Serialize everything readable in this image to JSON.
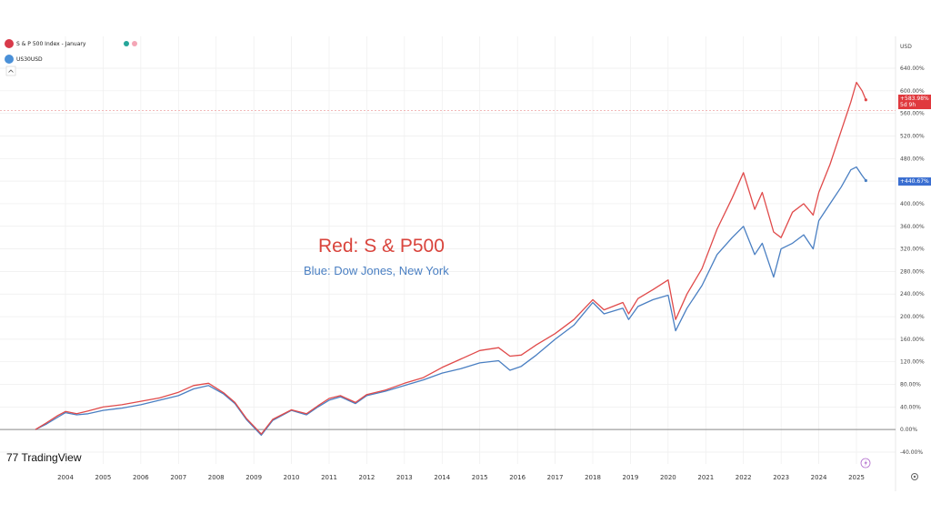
{
  "colors": {
    "sp500": "#e04a4a",
    "dow": "#4a7fc2",
    "grid": "#eeeeee",
    "zero_line": "#8a8a8a",
    "ref_line": "#f0b0b0"
  },
  "legend": {
    "sp500_label": "S & P 500 Index - January",
    "dow_label": "US30USD"
  },
  "axis": {
    "currency": "USD"
  },
  "annotations": {
    "red_text": "Red: S & P500",
    "blue_text": "Blue: Dow Jones, New York"
  },
  "branding": {
    "logo_text": "77 TradingView"
  },
  "tags": {
    "sp500_value": "+583.98%",
    "sp500_sub": "5d 9h",
    "dow_value": "+440.67%"
  },
  "chart_data": {
    "type": "line",
    "title": "",
    "xlabel": "",
    "ylabel": "",
    "y_unit": "%",
    "ylim": [
      -40,
      680
    ],
    "xlim": [
      2003.0,
      2025.6
    ],
    "grid": true,
    "y_ticks": [
      640,
      600,
      560,
      520,
      480,
      440,
      400,
      360,
      320,
      280,
      240,
      200,
      160,
      120,
      80,
      40,
      0,
      -40
    ],
    "y_tick_labels": [
      "640.00%",
      "600.00%",
      "560.00%",
      "520.00%",
      "480.00%",
      "440.00%",
      "400.00%",
      "360.00%",
      "320.00%",
      "280.00%",
      "240.00%",
      "200.00%",
      "160.00%",
      "120.00%",
      "80.00%",
      "40.00%",
      "0.00%",
      "-40.00%"
    ],
    "x_ticks": [
      "2004",
      "2005",
      "2006",
      "2007",
      "2008",
      "2009",
      "2010",
      "2011",
      "2012",
      "2013",
      "2014",
      "2015",
      "2016",
      "2017",
      "2018",
      "2019",
      "2020",
      "2021",
      "2022",
      "2023",
      "2024",
      "2025"
    ],
    "series": [
      {
        "name": "S & P 500 Index - January",
        "color": "#e04a4a",
        "last_value": 583.98,
        "x": [
          2003.2,
          2003.5,
          2003.8,
          2004.0,
          2004.3,
          2004.6,
          2005.0,
          2005.5,
          2006.0,
          2006.5,
          2007.0,
          2007.4,
          2007.8,
          2008.2,
          2008.5,
          2008.8,
          2009.2,
          2009.5,
          2010.0,
          2010.4,
          2010.7,
          2011.0,
          2011.3,
          2011.7,
          2012.0,
          2012.5,
          2013.0,
          2013.5,
          2014.0,
          2014.5,
          2015.0,
          2015.5,
          2015.8,
          2016.1,
          2016.5,
          2017.0,
          2017.5,
          2018.0,
          2018.3,
          2018.8,
          2018.95,
          2019.2,
          2019.6,
          2020.0,
          2020.2,
          2020.5,
          2020.9,
          2021.3,
          2021.7,
          2022.0,
          2022.3,
          2022.5,
          2022.8,
          2023.0,
          2023.3,
          2023.6,
          2023.85,
          2024.0,
          2024.3,
          2024.6,
          2024.85,
          2025.0,
          2025.15,
          2025.25
        ],
        "values": [
          0,
          12,
          25,
          32,
          28,
          33,
          40,
          44,
          50,
          56,
          66,
          78,
          82,
          65,
          48,
          20,
          -8,
          18,
          35,
          28,
          42,
          55,
          60,
          48,
          62,
          70,
          82,
          92,
          110,
          125,
          140,
          145,
          130,
          132,
          150,
          170,
          195,
          230,
          212,
          225,
          205,
          232,
          248,
          265,
          195,
          240,
          285,
          355,
          410,
          455,
          390,
          420,
          350,
          340,
          385,
          400,
          380,
          420,
          470,
          530,
          580,
          615,
          600,
          584
        ]
      },
      {
        "name": "US30USD",
        "color": "#4a7fc2",
        "last_value": 440.67,
        "x": [
          2003.2,
          2003.5,
          2003.8,
          2004.0,
          2004.3,
          2004.6,
          2005.0,
          2005.5,
          2006.0,
          2006.5,
          2007.0,
          2007.4,
          2007.8,
          2008.2,
          2008.5,
          2008.8,
          2009.2,
          2009.5,
          2010.0,
          2010.4,
          2010.7,
          2011.0,
          2011.3,
          2011.7,
          2012.0,
          2012.5,
          2013.0,
          2013.5,
          2014.0,
          2014.5,
          2015.0,
          2015.5,
          2015.8,
          2016.1,
          2016.5,
          2017.0,
          2017.5,
          2018.0,
          2018.3,
          2018.8,
          2018.95,
          2019.2,
          2019.6,
          2020.0,
          2020.2,
          2020.5,
          2020.9,
          2021.3,
          2021.7,
          2022.0,
          2022.3,
          2022.5,
          2022.8,
          2023.0,
          2023.3,
          2023.6,
          2023.85,
          2024.0,
          2024.3,
          2024.6,
          2024.85,
          2025.0,
          2025.15,
          2025.25
        ],
        "values": [
          0,
          10,
          22,
          30,
          26,
          28,
          34,
          38,
          44,
          52,
          60,
          72,
          78,
          63,
          46,
          18,
          -10,
          16,
          34,
          26,
          40,
          52,
          58,
          46,
          60,
          68,
          78,
          88,
          100,
          108,
          118,
          122,
          105,
          112,
          132,
          160,
          185,
          225,
          205,
          215,
          195,
          218,
          230,
          238,
          175,
          215,
          255,
          310,
          340,
          360,
          310,
          330,
          270,
          320,
          330,
          345,
          320,
          370,
          400,
          430,
          460,
          465,
          450,
          441
        ]
      }
    ],
    "reference_line": 565
  }
}
